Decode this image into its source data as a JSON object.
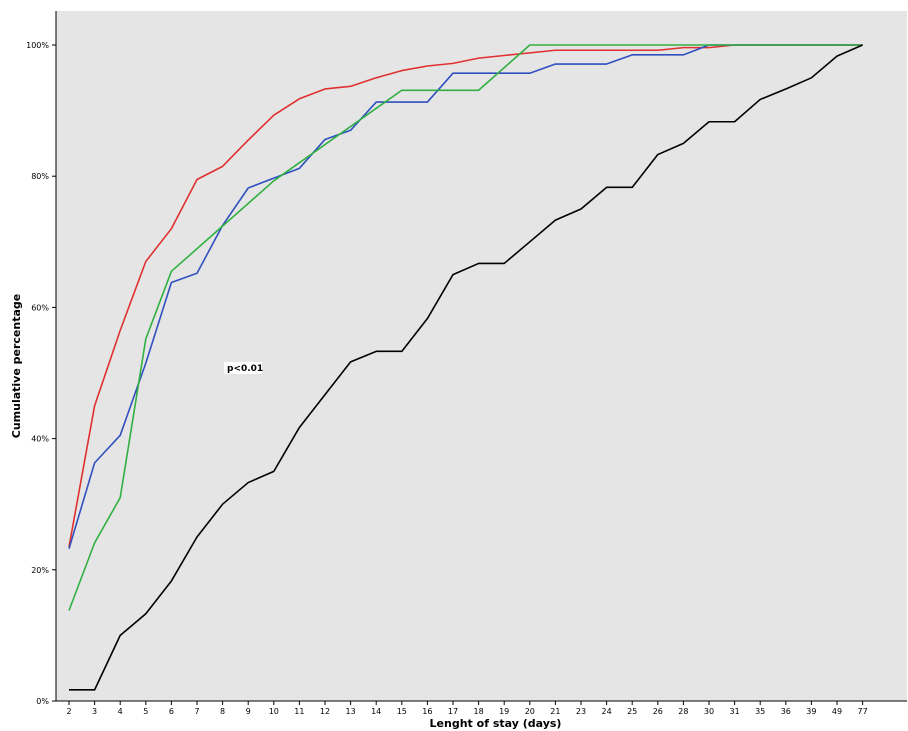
{
  "chart_data": {
    "type": "line",
    "title": "",
    "xlabel": "Lenght of stay (days)",
    "ylabel": "Cumulative percentage",
    "categories": [
      "2",
      "3",
      "4",
      "5",
      "6",
      "7",
      "8",
      "9",
      "10",
      "11",
      "12",
      "13",
      "14",
      "15",
      "16",
      "17",
      "18",
      "19",
      "20",
      "21",
      "23",
      "24",
      "25",
      "26",
      "28",
      "30",
      "31",
      "35",
      "36",
      "39",
      "49",
      "77"
    ],
    "yticks": [
      0,
      20,
      40,
      60,
      80,
      100
    ],
    "ytick_labels": [
      "0%",
      "20%",
      "40%",
      "60%",
      "80%",
      "100%"
    ],
    "ylim": [
      0,
      105
    ],
    "grid": false,
    "legend": "none",
    "annotation": "p<0.01",
    "background_color": "#e5e5e5",
    "series": [
      {
        "color": "#e03030",
        "values": [
          [
            0,
            23.5
          ],
          [
            1,
            45
          ],
          [
            2,
            56.5
          ],
          [
            3,
            67
          ],
          [
            4,
            72
          ],
          [
            5,
            79.5
          ],
          [
            6,
            81.5
          ],
          [
            7,
            85.5
          ],
          [
            8,
            89.3
          ],
          [
            9,
            91.8
          ],
          [
            10,
            93.3
          ],
          [
            11,
            93.7
          ],
          [
            12,
            95
          ],
          [
            13,
            96.1
          ],
          [
            14,
            96.8
          ],
          [
            15,
            97.2
          ],
          [
            16,
            98
          ],
          [
            17,
            98.4
          ],
          [
            18,
            98.8
          ],
          [
            19,
            99.2
          ],
          [
            20,
            99.2
          ],
          [
            21,
            99.2
          ],
          [
            22,
            99.2
          ],
          [
            23,
            99.2
          ],
          [
            24,
            99.6
          ],
          [
            25,
            99.6
          ],
          [
            26,
            100
          ],
          [
            31,
            100
          ]
        ]
      },
      {
        "color": "#3050c0",
        "values": [
          [
            0,
            23.2
          ],
          [
            1,
            36.3
          ],
          [
            2,
            40.5
          ],
          [
            3,
            51.5
          ],
          [
            4,
            63.8
          ],
          [
            5,
            65.2
          ],
          [
            6,
            72.5
          ],
          [
            7,
            78.2
          ],
          [
            8,
            79.7
          ],
          [
            9,
            81.2
          ],
          [
            10,
            85.6
          ],
          [
            11,
            87
          ],
          [
            12,
            91.3
          ],
          [
            13,
            91.3
          ],
          [
            14,
            91.3
          ],
          [
            15,
            95.7
          ],
          [
            16,
            95.7
          ],
          [
            17,
            95.7
          ],
          [
            18,
            95.7
          ],
          [
            19,
            97.1
          ],
          [
            20,
            97.1
          ],
          [
            21,
            97.1
          ],
          [
            22,
            98.5
          ],
          [
            23,
            98.5
          ],
          [
            24,
            98.5
          ],
          [
            25,
            100
          ],
          [
            26,
            100
          ],
          [
            31,
            100
          ]
        ]
      },
      {
        "color": "#30b040",
        "values": [
          [
            0,
            13.8
          ],
          [
            1,
            24.1
          ],
          [
            2,
            31
          ],
          [
            3,
            55.2
          ],
          [
            4,
            65.5
          ],
          [
            8,
            79.3
          ],
          [
            13,
            93.1
          ],
          [
            14,
            93.1
          ],
          [
            15,
            93.1
          ],
          [
            16,
            93.1
          ],
          [
            18,
            100
          ],
          [
            31,
            100
          ]
        ]
      },
      {
        "color": "#000000",
        "values": [
          [
            0,
            1.7
          ],
          [
            1,
            1.7
          ],
          [
            2,
            10
          ],
          [
            3,
            13.3
          ],
          [
            4,
            18.3
          ],
          [
            5,
            25
          ],
          [
            6,
            30
          ],
          [
            7,
            33.3
          ],
          [
            8,
            35
          ],
          [
            9,
            41.7
          ],
          [
            10,
            46.7
          ],
          [
            11,
            51.7
          ],
          [
            12,
            53.3
          ],
          [
            13,
            53.3
          ],
          [
            14,
            58.3
          ],
          [
            15,
            65
          ],
          [
            16,
            66.7
          ],
          [
            17,
            66.7
          ],
          [
            18,
            70
          ],
          [
            19,
            73.3
          ],
          [
            20,
            75
          ],
          [
            21,
            78.3
          ],
          [
            22,
            78.3
          ],
          [
            23,
            83.3
          ],
          [
            24,
            85
          ],
          [
            25,
            88.3
          ],
          [
            26,
            88.3
          ],
          [
            27,
            91.7
          ],
          [
            28,
            93.3
          ],
          [
            29,
            95
          ],
          [
            30,
            98.3
          ],
          [
            31,
            100
          ]
        ]
      }
    ]
  }
}
